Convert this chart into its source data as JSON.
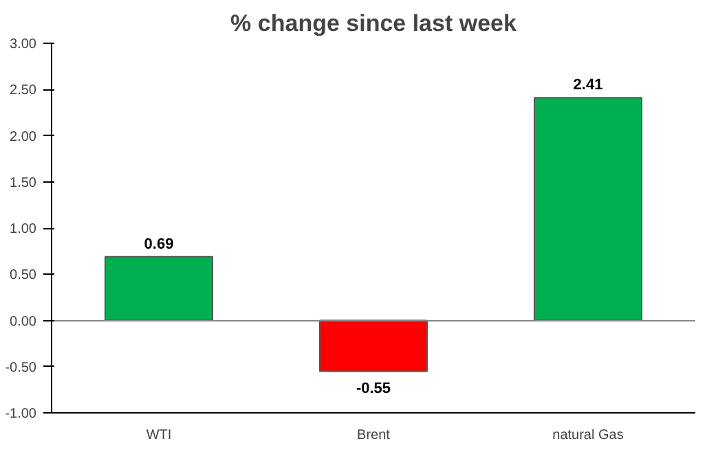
{
  "chart_data": {
    "type": "bar",
    "title": "% change since last week",
    "categories": [
      "WTI",
      "Brent",
      "natural Gas"
    ],
    "values": [
      0.69,
      -0.55,
      2.41
    ],
    "colors": [
      "#00b050",
      "#ff0000",
      "#00b050"
    ],
    "data_labels": true,
    "ylim": [
      -1,
      3
    ],
    "yticks": [
      {
        "value": -1,
        "label": "-1.00"
      },
      {
        "value": -0.5,
        "label": "-0.50"
      },
      {
        "value": 0,
        "label": "0.00"
      },
      {
        "value": 0.5,
        "label": "0.50"
      },
      {
        "value": 1,
        "label": "1.00"
      },
      {
        "value": 1.5,
        "label": "1.50"
      },
      {
        "value": 2,
        "label": "2.00"
      },
      {
        "value": 2.5,
        "label": "2.50"
      },
      {
        "value": 3,
        "label": "3.00"
      }
    ]
  }
}
